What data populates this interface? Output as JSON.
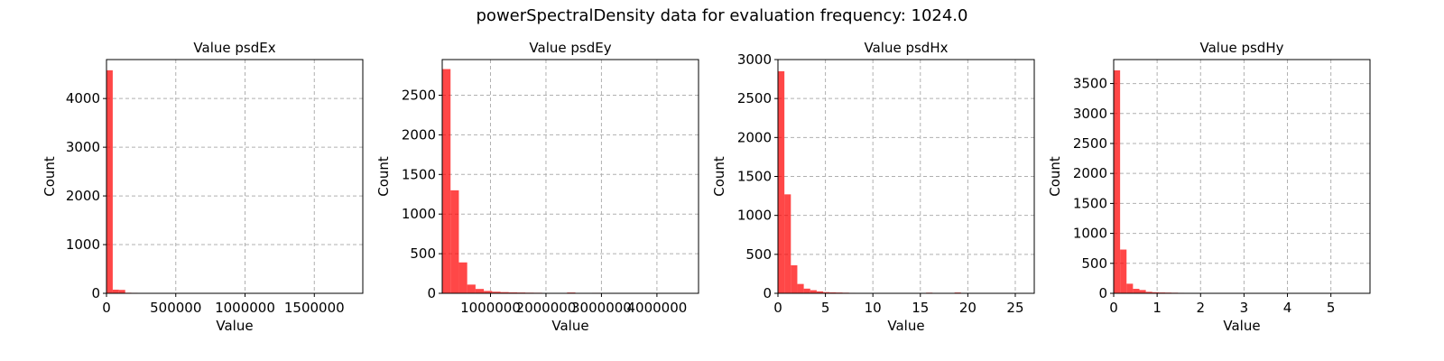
{
  "figure": {
    "suptitle": "powerSpectralDensity data for evaluation frequency: 1024.0"
  },
  "colors": {
    "bar": "#ff0000",
    "grid": "#b0b0b0"
  },
  "chart_data": [
    {
      "type": "bar",
      "title": "Value psdEx",
      "xlabel": "Value",
      "ylabel": "Count",
      "xlim": [
        0,
        1850000
      ],
      "ylim": [
        0,
        4800
      ],
      "xticks": [
        0,
        500000,
        1000000,
        1500000
      ],
      "xtick_labels": [
        "0",
        "500000",
        "1000000",
        "1500000"
      ],
      "yticks": [
        0,
        1000,
        2000,
        3000,
        4000
      ],
      "ytick_labels": [
        "0",
        "1000",
        "2000",
        "3000",
        "4000"
      ],
      "grid": true,
      "bin_width": 45000,
      "bins_start": [
        0,
        45000,
        90000,
        135000,
        180000,
        225000,
        270000,
        315000,
        360000
      ],
      "values": [
        4580,
        75,
        70,
        12,
        10,
        8,
        6,
        5,
        4
      ]
    },
    {
      "type": "bar",
      "title": "Value psdEy",
      "xlabel": "Value",
      "ylabel": "Count",
      "xlim": [
        130000,
        4750000
      ],
      "ylim": [
        0,
        2950
      ],
      "xticks": [
        1000000,
        2000000,
        3000000,
        4000000
      ],
      "xtick_labels": [
        "1000000",
        "2000000",
        "3000000",
        "4000000"
      ],
      "yticks": [
        0,
        500,
        1000,
        1500,
        2000,
        2500
      ],
      "ytick_labels": [
        "0",
        "500",
        "1000",
        "1500",
        "2000",
        "2500"
      ],
      "grid": true,
      "bin_width": 150000,
      "bins_start": [
        130000,
        280000,
        430000,
        580000,
        730000,
        880000,
        1030000,
        1180000,
        1330000,
        1480000,
        1630000,
        1780000,
        2080000,
        2380000,
        2830000,
        3580000
      ],
      "values": [
        2830,
        1300,
        390,
        110,
        55,
        30,
        20,
        15,
        12,
        10,
        8,
        7,
        5,
        10,
        6,
        4
      ]
    },
    {
      "type": "bar",
      "title": "Value psdHx",
      "xlabel": "Value",
      "ylabel": "Count",
      "xlim": [
        0,
        27
      ],
      "ylim": [
        0,
        3000
      ],
      "xticks": [
        0,
        5,
        10,
        15,
        20,
        25
      ],
      "xtick_labels": [
        "0",
        "5",
        "10",
        "15",
        "20",
        "25"
      ],
      "yticks": [
        0,
        500,
        1000,
        1500,
        2000,
        2500,
        3000
      ],
      "ytick_labels": [
        "0",
        "500",
        "1000",
        "1500",
        "2000",
        "2500",
        "3000"
      ],
      "grid": true,
      "bin_width": 0.68,
      "bins_start": [
        0,
        0.68,
        1.36,
        2.04,
        2.72,
        3.4,
        4.08,
        4.76,
        5.44,
        6.12,
        6.8,
        7.48,
        8.16,
        15.6,
        18.6
      ],
      "values": [
        2850,
        1270,
        360,
        120,
        60,
        40,
        25,
        15,
        12,
        10,
        8,
        6,
        5,
        8,
        10
      ]
    },
    {
      "type": "bar",
      "title": "Value psdHy",
      "xlabel": "Value",
      "ylabel": "Count",
      "xlim": [
        0,
        5.9
      ],
      "ylim": [
        0,
        3900
      ],
      "xticks": [
        0,
        1,
        2,
        3,
        4,
        5
      ],
      "xtick_labels": [
        "0",
        "1",
        "2",
        "3",
        "4",
        "5"
      ],
      "yticks": [
        0,
        500,
        1000,
        1500,
        2000,
        2500,
        3000,
        3500
      ],
      "ytick_labels": [
        "0",
        "500",
        "1000",
        "1500",
        "2000",
        "2500",
        "3000",
        "3500"
      ],
      "grid": true,
      "bin_width": 0.148,
      "bins_start": [
        0,
        0.148,
        0.296,
        0.444,
        0.592,
        0.74,
        0.888,
        1.036,
        1.184,
        1.332,
        1.48,
        1.776
      ],
      "values": [
        3720,
        730,
        160,
        75,
        55,
        25,
        18,
        14,
        12,
        10,
        8,
        6
      ]
    }
  ]
}
